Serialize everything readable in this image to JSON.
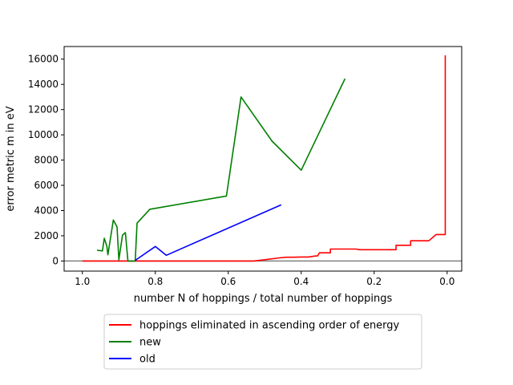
{
  "chart_data": {
    "type": "line",
    "xlabel": "number N of hoppings / total number of hoppings",
    "ylabel": "error metric m in eV",
    "xlim": [
      1.05,
      -0.04
    ],
    "ylim": [
      -800,
      17000
    ],
    "x_inverted": true,
    "x_ticks": [
      1.0,
      0.8,
      0.6,
      0.4,
      0.2,
      0.0
    ],
    "x_tick_labels": [
      "1.0",
      "0.8",
      "0.6",
      "0.4",
      "0.2",
      "0.0"
    ],
    "y_ticks": [
      0,
      2000,
      4000,
      6000,
      8000,
      10000,
      12000,
      14000,
      16000
    ],
    "y_tick_labels": [
      "0",
      "2000",
      "4000",
      "6000",
      "8000",
      "10000",
      "12000",
      "14000",
      "16000"
    ],
    "reference_line": {
      "y": 0,
      "color": "#808080"
    },
    "legend_position": "below the plot, centered",
    "series": [
      {
        "name": "hoppings eliminated in ascending order of energy",
        "color": "#ff0000",
        "x": [
          1.0,
          0.9,
          0.8,
          0.7,
          0.6,
          0.53,
          0.5,
          0.46,
          0.44,
          0.42,
          0.4,
          0.38,
          0.36,
          0.355,
          0.35,
          0.345,
          0.32,
          0.32,
          0.26,
          0.25,
          0.24,
          0.14,
          0.14,
          0.1,
          0.1,
          0.05,
          0.03,
          0.03,
          0.005,
          0.005
        ],
        "y": [
          0,
          0,
          0,
          0,
          0,
          0,
          100,
          250,
          300,
          300,
          320,
          320,
          400,
          400,
          650,
          650,
          650,
          950,
          950,
          950,
          900,
          900,
          1250,
          1250,
          1600,
          1600,
          2100,
          2100,
          2100,
          16300
        ]
      },
      {
        "name": "new",
        "color": "#008000",
        "x": [
          0.96,
          0.945,
          0.94,
          0.933,
          0.93,
          0.915,
          0.905,
          0.9,
          0.89,
          0.882,
          0.875,
          0.868,
          0.855,
          0.85,
          0.815,
          0.605,
          0.565,
          0.48,
          0.4,
          0.28
        ],
        "y": [
          850,
          800,
          1800,
          1200,
          500,
          3250,
          2700,
          100,
          2050,
          2250,
          0,
          0,
          0,
          3000,
          4100,
          5150,
          13000,
          9500,
          7200,
          14450
        ]
      },
      {
        "name": "old",
        "color": "#0000ff",
        "x": [
          0.855,
          0.8,
          0.77,
          0.455
        ],
        "y": [
          50,
          1150,
          450,
          4450
        ]
      }
    ]
  }
}
